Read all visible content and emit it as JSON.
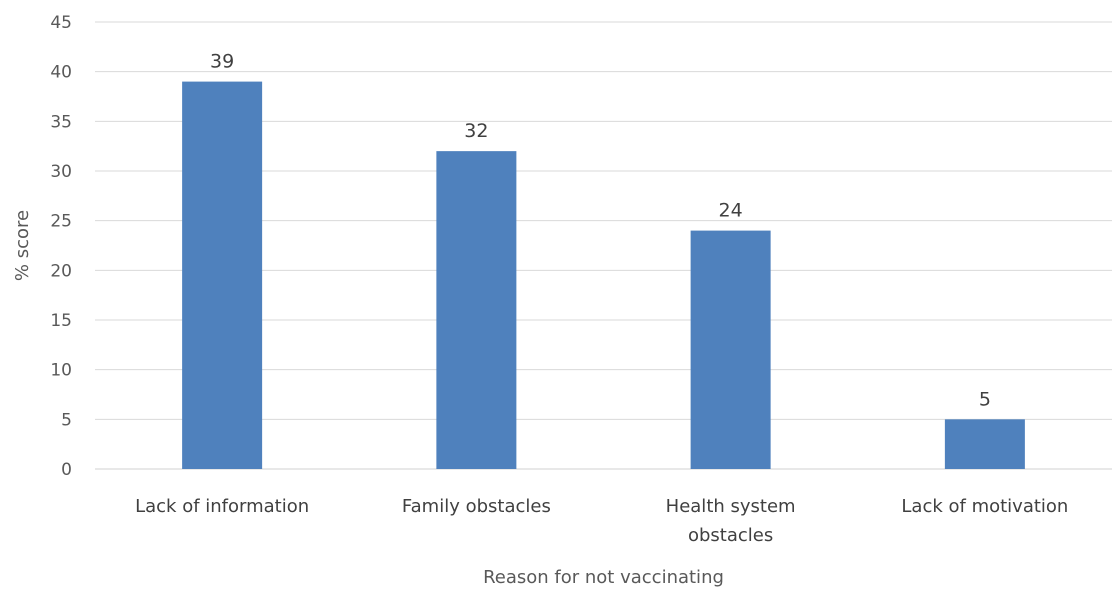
{
  "chart_data": {
    "type": "bar",
    "categories": [
      [
        "Lack of information"
      ],
      [
        "Family obstacles"
      ],
      [
        "Health system",
        "obstacles"
      ],
      [
        "Lack of motivation"
      ]
    ],
    "values": [
      39,
      32,
      24,
      5
    ],
    "data_labels": [
      "39",
      "32",
      "24",
      "5"
    ],
    "title": "",
    "xlabel": "Reason for not vaccinating",
    "ylabel": "% score",
    "ylim": [
      0,
      45
    ],
    "yticks": [
      0,
      5,
      10,
      15,
      20,
      25,
      30,
      35,
      40,
      45
    ],
    "grid": true,
    "legend": "none",
    "bar_color": "#4f81bd"
  }
}
